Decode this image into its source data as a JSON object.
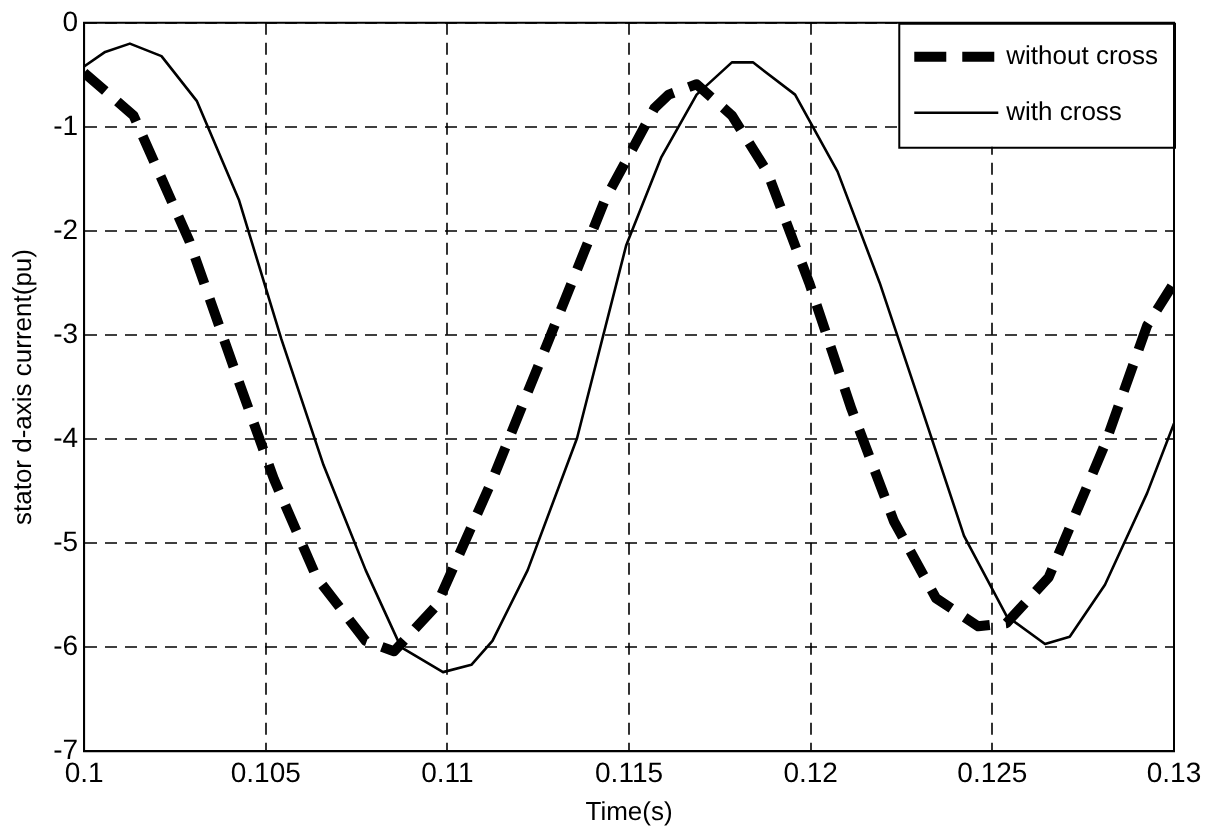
{
  "chart_data": {
    "type": "line",
    "xlabel": "Time(s)",
    "ylabel": "stator d-axis current(pu)",
    "xlim": [
      0.1,
      0.13
    ],
    "xticks": [
      0.1,
      0.105,
      0.11,
      0.115,
      0.12,
      0.125,
      0.13
    ],
    "ylim": [
      -7,
      0
    ],
    "yticks": [
      -7,
      -6,
      -5,
      -4,
      -3,
      -2,
      -1,
      0
    ],
    "grid": true,
    "legend": "top right",
    "marker": "none",
    "series": [
      {
        "name": "without cross",
        "color": "#000000",
        "line_style": "dashed",
        "x": [
          0.1,
          0.10136,
          0.1029,
          0.10426,
          0.10523,
          0.1064,
          0.10775,
          0.10853,
          0.1097,
          0.11124,
          0.1128,
          0.11434,
          0.1157,
          0.11609,
          0.11686,
          0.11783,
          0.1188,
          0.11996,
          0.12112,
          0.12229,
          0.12345,
          0.12461,
          0.12539,
          0.12655,
          0.1281,
          0.12926,
          0.13
        ],
        "values": [
          -0.48,
          -0.89,
          -2.1,
          -3.45,
          -4.39,
          -5.33,
          -5.94,
          -6.04,
          -5.6,
          -4.39,
          -3.04,
          -1.7,
          -0.82,
          -0.69,
          -0.59,
          -0.89,
          -1.43,
          -2.5,
          -3.71,
          -4.79,
          -5.53,
          -5.8,
          -5.77,
          -5.33,
          -4.05,
          -2.91,
          -2.5
        ]
      },
      {
        "name": "with cross",
        "color": "#000000",
        "line_style": "solid",
        "x": [
          0.1,
          0.10058,
          0.10126,
          0.10213,
          0.1031,
          0.10426,
          0.10543,
          0.10659,
          0.10775,
          0.10872,
          0.10988,
          0.11066,
          0.11124,
          0.11221,
          0.11357,
          0.11492,
          0.11589,
          0.11686,
          0.11783,
          0.11841,
          0.11957,
          0.12074,
          0.1219,
          0.12306,
          0.12422,
          0.12539,
          0.12645,
          0.12713,
          0.1281,
          0.12926,
          0.13
        ],
        "values": [
          -0.42,
          -0.28,
          -0.2,
          -0.32,
          -0.75,
          -1.7,
          -3.04,
          -4.25,
          -5.26,
          -6.0,
          -6.24,
          -6.17,
          -5.94,
          -5.26,
          -3.99,
          -2.14,
          -1.29,
          -0.69,
          -0.38,
          -0.38,
          -0.69,
          -1.43,
          -2.5,
          -3.71,
          -4.93,
          -5.7,
          -5.97,
          -5.9,
          -5.4,
          -4.52,
          -3.85
        ]
      }
    ]
  }
}
